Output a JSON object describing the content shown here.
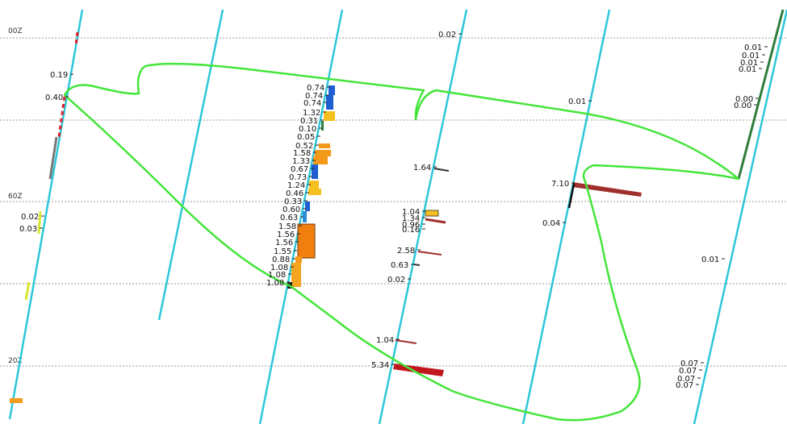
{
  "colors": {
    "well": "#2cc7d9",
    "reference_line": "#9a9a9a",
    "survey_outline": "#44e53a",
    "bar_blue": "#1f5fd1",
    "bar_orange": "#f39a1a",
    "bar_yellow": "#f5c01f",
    "bar_red": "#c0161c",
    "bar_brown": "#a0302c",
    "bar_darkgreen": "#2f7d3b",
    "tick": "#222222"
  },
  "depth_labels": [
    "00Z",
    "60Z",
    "20Z"
  ],
  "well_values": {
    "well1": [
      "0.19",
      "0.40",
      "0.02",
      "0.03"
    ],
    "well3": [
      "0.74",
      "0.74",
      "0.74",
      "1.32",
      "0.31",
      "0.10",
      "0.05",
      "0.52",
      "1.58",
      "1.33",
      "0.67",
      "0.73",
      "1.24",
      "0.46",
      "0.33",
      "0.60",
      "0.63",
      "1.58",
      "1.56",
      "1.56",
      "1.55",
      "0.88",
      "1.08",
      "1.08",
      "1.08"
    ],
    "well4": [
      "1.64",
      "1.04",
      "1.34",
      "0.96",
      "0.16",
      "2.58",
      "0.63",
      "0.02",
      "1.04",
      "5.34"
    ],
    "well5": [
      "0.02"
    ],
    "well6": [
      "0.01",
      "7.10",
      "0.04"
    ],
    "well7": [
      "0.01",
      "0.01",
      "0.01",
      "0.01",
      "0.00",
      "0.00",
      "0.01",
      "0.07",
      "0.07",
      "0.07",
      "0.07"
    ]
  }
}
